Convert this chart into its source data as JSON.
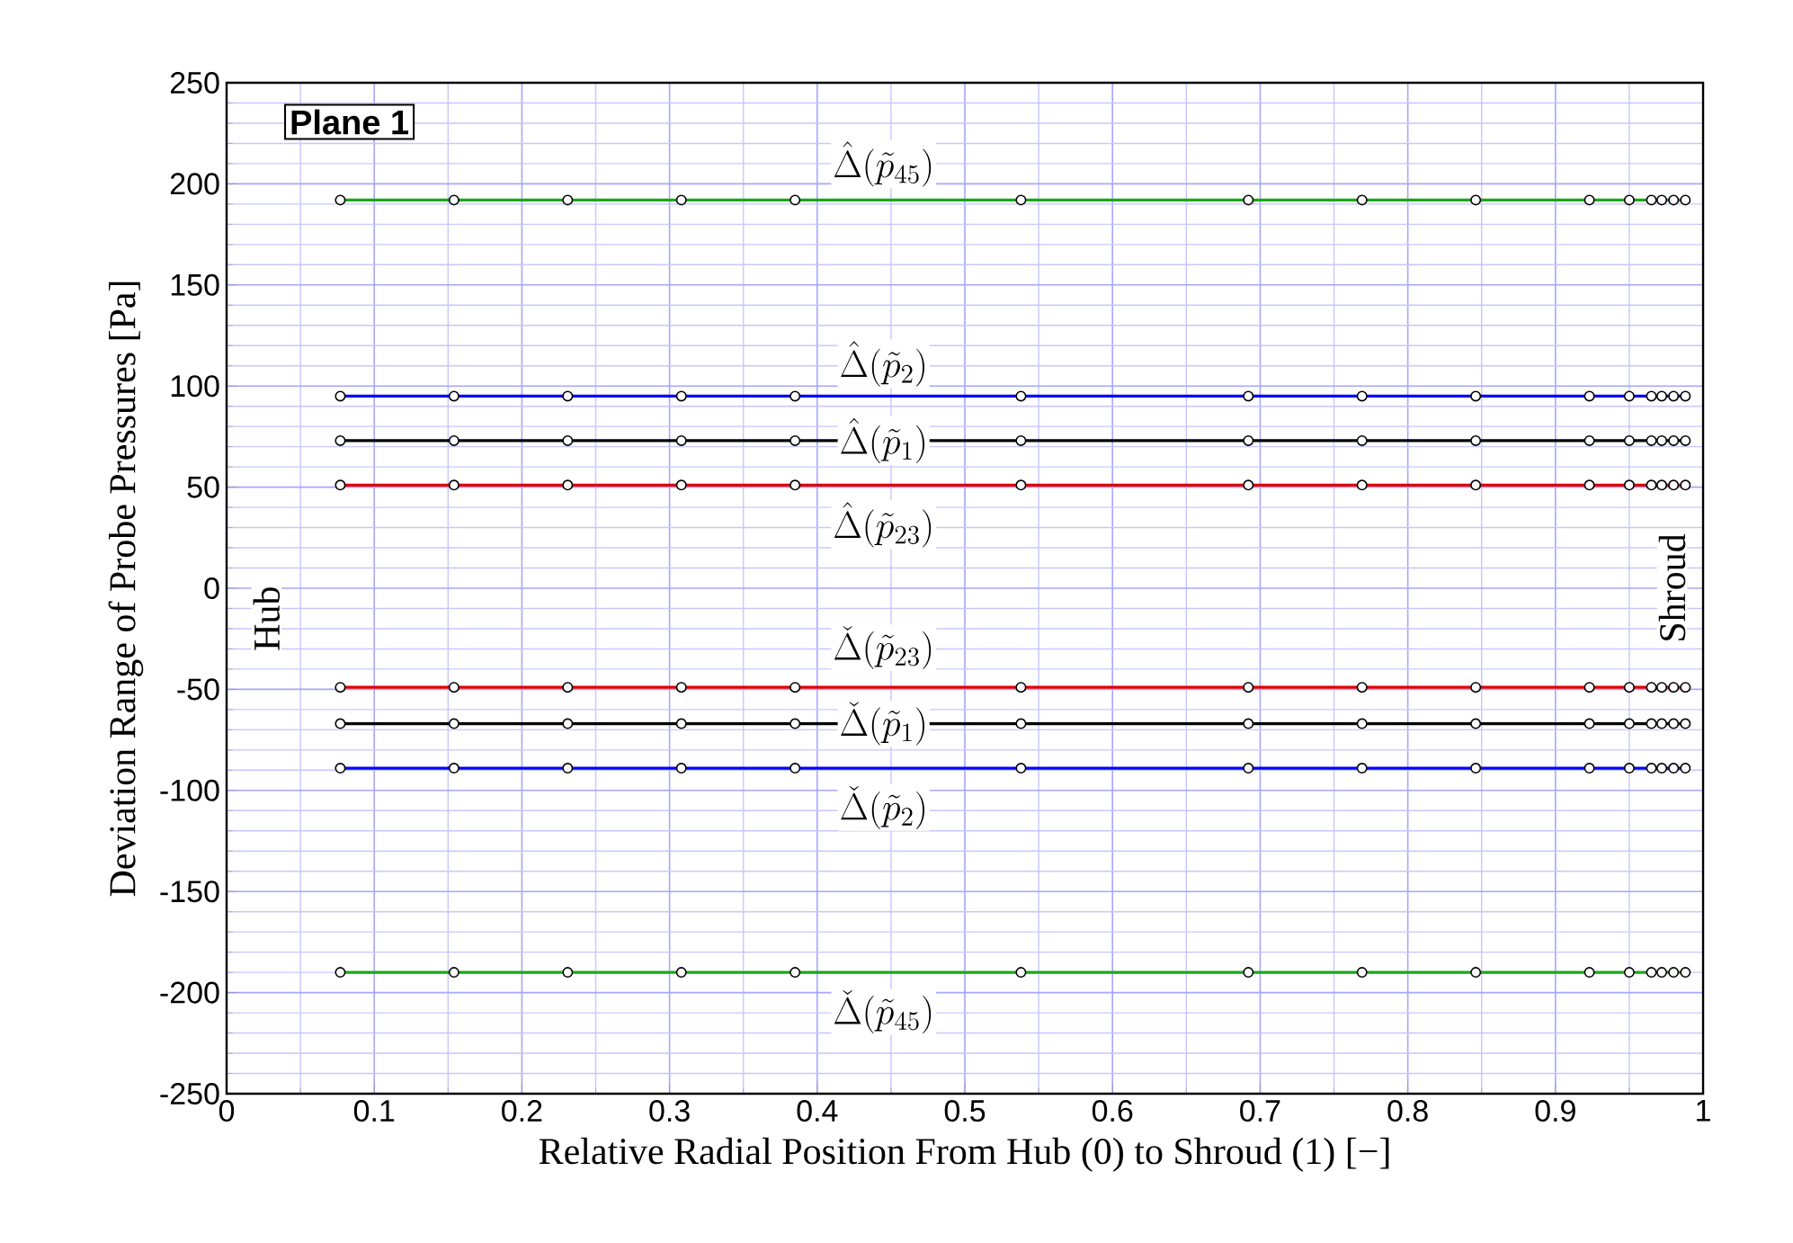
{
  "chart_data": {
    "type": "line",
    "title": "Plane 1",
    "xlabel": "Relative Radial Position From Hub (0) to Shroud (1) [−]",
    "ylabel": "Deviation Range of Probe Pressures [Pa]",
    "x": [
      0.077,
      0.154,
      0.231,
      0.308,
      0.385,
      0.538,
      0.692,
      0.769,
      0.846,
      0.923,
      0.95,
      0.965,
      0.972,
      0.98,
      0.988
    ],
    "series": [
      {
        "color": "#1aa81a",
        "values": [
          192,
          192,
          192,
          192,
          192,
          192,
          192,
          192,
          192,
          192,
          192,
          192,
          192,
          192,
          192
        ]
      },
      {
        "color": "#0000ff",
        "values": [
          95,
          95,
          95,
          95,
          95,
          95,
          95,
          95,
          95,
          95,
          95,
          95,
          95,
          95,
          95
        ]
      },
      {
        "color": "#000000",
        "values": [
          73,
          73,
          73,
          73,
          73,
          73,
          73,
          73,
          73,
          73,
          73,
          73,
          73,
          73,
          73
        ]
      },
      {
        "color": "#e00000",
        "values": [
          51,
          51,
          51,
          51,
          51,
          51,
          51,
          51,
          51,
          51,
          51,
          51,
          51,
          51,
          51
        ]
      },
      {
        "color": "#e00000",
        "values": [
          -49,
          -49,
          -49,
          -49,
          -49,
          -49,
          -49,
          -49,
          -49,
          -49,
          -49,
          -49,
          -49,
          -49,
          -49
        ]
      },
      {
        "color": "#000000",
        "values": [
          -67,
          -67,
          -67,
          -67,
          -67,
          -67,
          -67,
          -67,
          -67,
          -67,
          -67,
          -67,
          -67,
          -67,
          -67
        ]
      },
      {
        "color": "#0000ff",
        "values": [
          -89,
          -89,
          -89,
          -89,
          -89,
          -89,
          -89,
          -89,
          -89,
          -89,
          -89,
          -89,
          -89,
          -89,
          -89
        ]
      },
      {
        "color": "#1aa81a",
        "values": [
          -190,
          -190,
          -190,
          -190,
          -190,
          -190,
          -190,
          -190,
          -190,
          -190,
          -190,
          -190,
          -190,
          -190,
          -190
        ]
      }
    ],
    "annotations": [
      {
        "text": "\\hat{\\Delta}(\\tilde{p}_{45})",
        "y": 192
      },
      {
        "text": "\\hat{\\Delta}(\\tilde{p}_{2})",
        "y": 95
      },
      {
        "text": "\\hat{\\Delta}(\\tilde{p}_{1})",
        "y": 73
      },
      {
        "text": "\\hat{\\Delta}(\\tilde{p}_{23})",
        "y": 51
      },
      {
        "text": "\\check{\\Delta}(\\tilde{p}_{23})",
        "y": -49
      },
      {
        "text": "\\check{\\Delta}(\\tilde{p}_{1})",
        "y": -67
      },
      {
        "text": "\\check{\\Delta}(\\tilde{p}_{2})",
        "y": -89
      },
      {
        "text": "\\check{\\Delta}(\\tilde{p}_{45})",
        "y": -190
      },
      "Hub",
      "Shroud"
    ],
    "xlim": [
      0,
      1
    ],
    "xticks": [
      0,
      {
        "value": 0.05,
        "label": null
      },
      0.1,
      {
        "value": 0.15,
        "label": null
      },
      0.2,
      {
        "value": 0.25,
        "label": null
      },
      0.3,
      {
        "value": 0.35,
        "label": null
      },
      0.4,
      {
        "value": 0.45,
        "label": null
      },
      0.5,
      {
        "value": 0.55,
        "label": null
      },
      0.6,
      {
        "value": 0.65,
        "label": null
      },
      0.7,
      {
        "value": 0.75,
        "label": null
      },
      0.8,
      {
        "value": 0.85,
        "label": null
      },
      0.9,
      {
        "value": 0.95,
        "label": null
      },
      1
    ],
    "ylim": [
      -250,
      250
    ],
    "yticks": [
      -250,
      {
        "value": -240,
        "label": null
      },
      {
        "value": -230,
        "label": null
      },
      {
        "value": -220,
        "label": null
      },
      {
        "value": -210,
        "label": null
      },
      -200,
      {
        "value": -190,
        "label": null
      },
      {
        "value": -180,
        "label": null
      },
      {
        "value": -170,
        "label": null
      },
      {
        "value": -160,
        "label": null
      },
      -150,
      {
        "value": -140,
        "label": null
      },
      {
        "value": -130,
        "label": null
      },
      {
        "value": -120,
        "label": null
      },
      {
        "value": -110,
        "label": null
      },
      -100,
      {
        "value": -90,
        "label": null
      },
      {
        "value": -80,
        "label": null
      },
      {
        "value": -70,
        "label": null
      },
      {
        "value": -60,
        "label": null
      },
      -50,
      {
        "value": -40,
        "label": null
      },
      {
        "value": -30,
        "label": null
      },
      {
        "value": -20,
        "label": null
      },
      {
        "value": -10,
        "label": null
      },
      0,
      {
        "value": 10,
        "label": null
      },
      {
        "value": 20,
        "label": null
      },
      {
        "value": 30,
        "label": null
      },
      {
        "value": 40,
        "label": null
      },
      50,
      {
        "value": 60,
        "label": null
      },
      {
        "value": 70,
        "label": null
      },
      {
        "value": 80,
        "label": null
      },
      {
        "value": 90,
        "label": null
      },
      100,
      {
        "value": 110,
        "label": null
      },
      {
        "value": 120,
        "label": null
      },
      {
        "value": 130,
        "label": null
      },
      {
        "value": 140,
        "label": null
      },
      150,
      {
        "value": 160,
        "label": null
      },
      {
        "value": 170,
        "label": null
      },
      {
        "value": 180,
        "label": null
      },
      {
        "value": 190,
        "label": null
      },
      200,
      {
        "value": 210,
        "label": null
      },
      {
        "value": 220,
        "label": null
      },
      {
        "value": 230,
        "label": null
      },
      {
        "value": 240,
        "label": null
      },
      250
    ],
    "grid": true,
    "marker": "circle",
    "line_style": "solid"
  }
}
